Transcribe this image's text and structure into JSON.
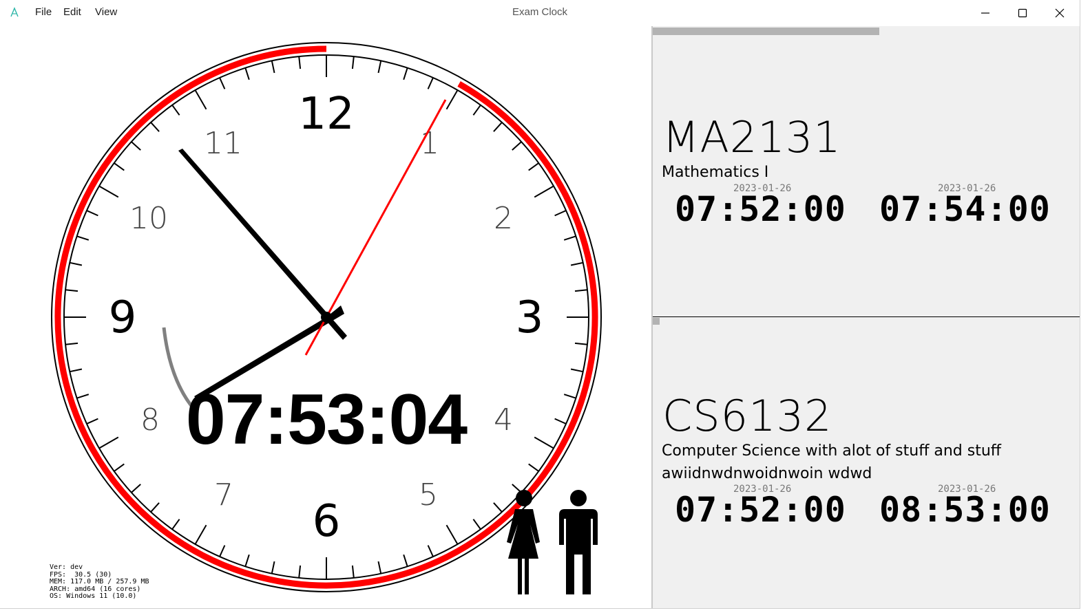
{
  "window": {
    "title": "Exam Clock",
    "menu": [
      "File",
      "Edit",
      "View"
    ]
  },
  "clock": {
    "digital_time": "07:53:04",
    "hour_numerals": [
      "12",
      "1",
      "2",
      "3",
      "4",
      "5",
      "6",
      "7",
      "8",
      "9",
      "10",
      "11"
    ],
    "colors": {
      "face": "#ffffff",
      "rim": "#000000",
      "exam_arc": "#ff0000",
      "second_hand": "#ff0000",
      "elapsed_arc": "#808080"
    }
  },
  "stats": {
    "ver": "Ver: dev",
    "fps": "FPS:  30.5 (30)",
    "mem": "MEM: 117.0 MB / 257.9 MB",
    "arch": "ARCH: amd64 (16 cores)",
    "os": "OS: Windows 11 (10.0)"
  },
  "progress": {
    "fraction": 0.53
  },
  "exams": [
    {
      "code": "MA2131",
      "name": "Mathematics I",
      "start_date": "2023-01-26",
      "start_time": "07:52:00",
      "end_date": "2023-01-26",
      "end_time": "07:54:00"
    },
    {
      "code": "CS6132",
      "name": "Computer Science with alot of stuff and stuff awiidnwdnwoidnwoin wdwd",
      "start_date": "2023-01-26",
      "start_time": "07:52:00",
      "end_date": "2023-01-26",
      "end_time": "08:53:00"
    }
  ],
  "icons": [
    "app-logo-icon",
    "minimize-icon",
    "maximize-icon",
    "close-icon",
    "restroom-icon"
  ]
}
